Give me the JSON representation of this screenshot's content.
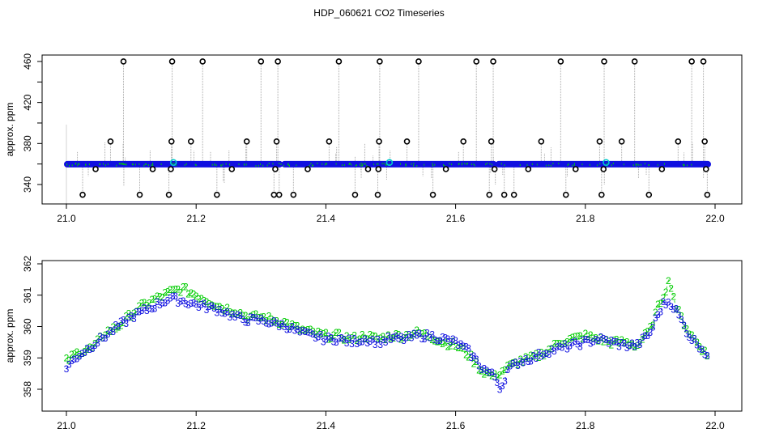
{
  "title": "HDP_060621  CO2 Timeseries",
  "colors": {
    "background": "#ffffff",
    "axis": "#000000",
    "spike_line": "#a8a8a8",
    "outlier_marker": "#000000",
    "main_series": "#1010e0",
    "secondary_series": "#00cc00",
    "highlight_marker": "#00cccc"
  },
  "chart_data": [
    {
      "id": "top",
      "type": "scatter",
      "title": "",
      "xlabel": "",
      "ylabel": "approx. ppm",
      "xlim": [
        21.0,
        22.0
      ],
      "ylim": [
        330,
        462
      ],
      "x_ticks": [
        "21.0",
        "21.2",
        "21.4",
        "21.6",
        "21.8",
        "22.0"
      ],
      "y_ticks": [
        "340",
        "380",
        "420",
        "460"
      ],
      "y_minor_ticks": [
        360,
        400,
        440
      ],
      "grid": false,
      "legend": null,
      "series": [
        {
          "name": "CO2 (blue circles, ~359-361 ppm baseline)",
          "baseline_ppm": 359.8
        },
        {
          "name": "outliers (black circles)",
          "points": [
            [
              21.025,
              330
            ],
            [
              21.045,
              355
            ],
            [
              21.068,
              382
            ],
            [
              21.088,
              460
            ],
            [
              21.113,
              330
            ],
            [
              21.133,
              355
            ],
            [
              21.158,
              330
            ],
            [
              21.161,
              355
            ],
            [
              21.162,
              382
            ],
            [
              21.163,
              460
            ],
            [
              21.192,
              382
            ],
            [
              21.21,
              460
            ],
            [
              21.232,
              330
            ],
            [
              21.255,
              355
            ],
            [
              21.278,
              382
            ],
            [
              21.3,
              460
            ],
            [
              21.32,
              330
            ],
            [
              21.322,
              355
            ],
            [
              21.324,
              382
            ],
            [
              21.326,
              460
            ],
            [
              21.328,
              330
            ],
            [
              21.35,
              330
            ],
            [
              21.372,
              355
            ],
            [
              21.405,
              382
            ],
            [
              21.42,
              460
            ],
            [
              21.445,
              330
            ],
            [
              21.465,
              355
            ],
            [
              21.48,
              330
            ],
            [
              21.481,
              355
            ],
            [
              21.482,
              382
            ],
            [
              21.483,
              460
            ],
            [
              21.525,
              382
            ],
            [
              21.543,
              460
            ],
            [
              21.565,
              330
            ],
            [
              21.585,
              355
            ],
            [
              21.612,
              382
            ],
            [
              21.632,
              460
            ],
            [
              21.652,
              330
            ],
            [
              21.655,
              382
            ],
            [
              21.658,
              460
            ],
            [
              21.66,
              355
            ],
            [
              21.675,
              330
            ],
            [
              21.69,
              330
            ],
            [
              21.712,
              355
            ],
            [
              21.732,
              382
            ],
            [
              21.762,
              460
            ],
            [
              21.77,
              330
            ],
            [
              21.785,
              355
            ],
            [
              21.822,
              382
            ],
            [
              21.825,
              330
            ],
            [
              21.828,
              355
            ],
            [
              21.829,
              460
            ],
            [
              21.856,
              382
            ],
            [
              21.876,
              460
            ],
            [
              21.898,
              330
            ],
            [
              21.918,
              355
            ],
            [
              21.943,
              382
            ],
            [
              21.964,
              460
            ],
            [
              21.982,
              460
            ],
            [
              21.984,
              382
            ],
            [
              21.986,
              355
            ],
            [
              21.988,
              330
            ]
          ]
        },
        {
          "name": "highlight (cyan circles)",
          "points": [
            [
              21.165,
              361.5
            ],
            [
              21.498,
              361.5
            ],
            [
              21.832,
              361.5
            ]
          ]
        }
      ]
    },
    {
      "id": "bottom",
      "type": "scatter",
      "title": "",
      "xlabel": "",
      "ylabel": "approx. ppm",
      "xlim": [
        21.0,
        22.0
      ],
      "ylim": [
        357.5,
        362
      ],
      "x_ticks": [
        "21.0",
        "21.2",
        "21.4",
        "21.6",
        "21.8",
        "22.0"
      ],
      "y_ticks": [
        "358",
        "359",
        "360",
        "361",
        "362"
      ],
      "grid": false,
      "legend": null,
      "series": [
        {
          "name": "3",
          "marker": "3",
          "color": "#1010e0",
          "x": [
            21.0,
            21.02,
            21.04,
            21.06,
            21.08,
            21.1,
            21.12,
            21.14,
            21.16,
            21.18,
            21.2,
            21.22,
            21.24,
            21.26,
            21.28,
            21.3,
            21.32,
            21.34,
            21.36,
            21.38,
            21.4,
            21.42,
            21.44,
            21.46,
            21.48,
            21.5,
            21.52,
            21.54,
            21.56,
            21.58,
            21.6,
            21.62,
            21.64,
            21.66,
            21.67,
            21.68,
            21.7,
            21.72,
            21.74,
            21.76,
            21.78,
            21.8,
            21.82,
            21.84,
            21.86,
            21.88,
            21.9,
            21.91,
            21.92,
            21.93,
            21.94,
            21.96,
            21.98,
            21.99
          ],
          "y": [
            358.7,
            359.1,
            359.4,
            359.7,
            360.0,
            360.3,
            360.5,
            360.7,
            360.9,
            360.8,
            360.7,
            360.6,
            360.5,
            360.3,
            360.2,
            360.2,
            360.1,
            360.0,
            359.8,
            359.7,
            359.6,
            359.6,
            359.5,
            359.6,
            359.5,
            359.6,
            359.6,
            359.7,
            359.7,
            359.6,
            359.5,
            359.2,
            358.7,
            358.4,
            358.0,
            358.6,
            358.9,
            359.0,
            359.2,
            359.3,
            359.4,
            359.5,
            359.6,
            359.5,
            359.4,
            359.4,
            359.8,
            360.3,
            360.7,
            360.8,
            360.5,
            359.7,
            359.3,
            359.0
          ]
        },
        {
          "name": "2",
          "marker": "2",
          "color": "#00cc00",
          "x": [
            21.0,
            21.02,
            21.04,
            21.06,
            21.08,
            21.1,
            21.12,
            21.14,
            21.16,
            21.18,
            21.2,
            21.22,
            21.24,
            21.26,
            21.28,
            21.3,
            21.32,
            21.34,
            21.36,
            21.38,
            21.4,
            21.42,
            21.44,
            21.46,
            21.48,
            21.5,
            21.52,
            21.54,
            21.56,
            21.58,
            21.6,
            21.62,
            21.64,
            21.66,
            21.68,
            21.7,
            21.72,
            21.74,
            21.76,
            21.78,
            21.8,
            21.82,
            21.84,
            21.86,
            21.88,
            21.9,
            21.91,
            21.92,
            21.93,
            21.94,
            21.96,
            21.98,
            21.99
          ],
          "y": [
            358.9,
            359.2,
            359.3,
            359.8,
            360.0,
            360.4,
            360.7,
            360.9,
            361.1,
            361.2,
            361.0,
            360.8,
            360.6,
            360.5,
            360.3,
            360.3,
            360.2,
            360.1,
            359.9,
            359.8,
            359.7,
            359.7,
            359.6,
            359.7,
            359.6,
            359.7,
            359.7,
            359.8,
            359.7,
            359.5,
            359.4,
            359.1,
            358.6,
            358.4,
            358.7,
            358.9,
            359.0,
            359.2,
            359.5,
            359.6,
            359.7,
            359.6,
            359.5,
            359.5,
            359.4,
            359.9,
            360.5,
            361.0,
            361.5,
            360.6,
            359.8,
            359.3,
            359.0
          ]
        }
      ]
    }
  ]
}
